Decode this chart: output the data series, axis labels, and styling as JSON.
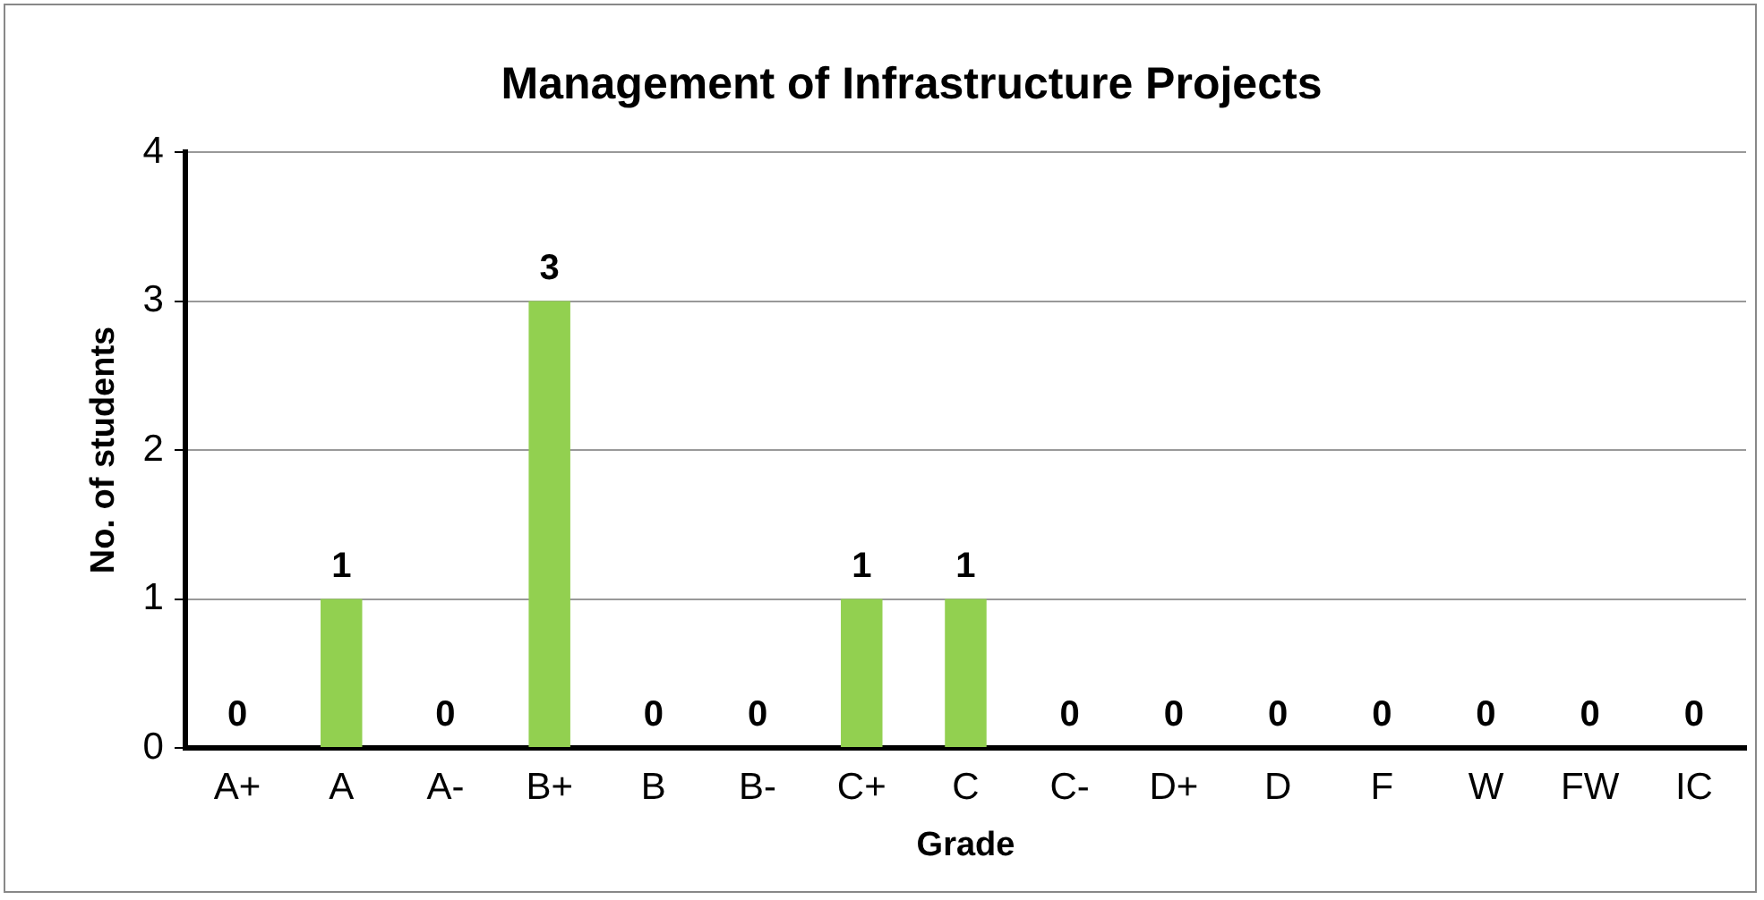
{
  "chart_data": {
    "type": "bar",
    "title": "Management of Infrastructure Projects",
    "xlabel": "Grade",
    "ylabel": "No. of students",
    "categories": [
      "A+",
      "A",
      "A-",
      "B+",
      "B",
      "B-",
      "C+",
      "C",
      "C-",
      "D+",
      "D",
      "F",
      "W",
      "FW",
      "IC"
    ],
    "values": [
      0,
      1,
      0,
      3,
      0,
      0,
      1,
      1,
      0,
      0,
      0,
      0,
      0,
      0,
      0
    ],
    "color": "#92d050",
    "ylim": [
      0,
      4
    ],
    "yticks": [
      0,
      1,
      2,
      3,
      4
    ],
    "grid": "y",
    "data_labels": true
  }
}
